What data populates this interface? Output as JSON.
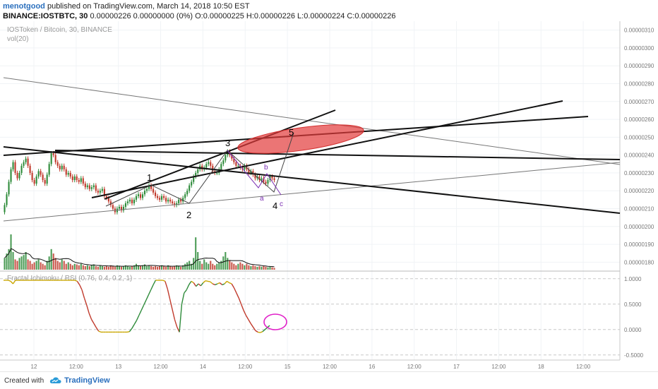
{
  "header": {
    "author": "menotgood",
    "published_text": "published on TradingView.com, March 14, 2018 10:50 EST",
    "symbol_line": "BINANCE:IOSTBTC, 30",
    "ohlc_line": "0.00000226 0.00000000 (0%) O:0.00000225 H:0.00000226 L:0.00000224 C:0.00000226"
  },
  "pane_labels": {
    "main": "IOSToken / Bitcoin, 30, BINANCE",
    "volume": "vol(20)",
    "indicator": "Fractal Ichimoku / RSI (0.76, 0.4, 0.2, 1)"
  },
  "footer": {
    "created_with": "Created with",
    "brand": "TradingView"
  },
  "colors": {
    "up": "#2e8b3a",
    "down": "#c0392b",
    "target_zone": "#e33b3b",
    "wave_labels": "#000000",
    "abc_labels": "#7b2fb3",
    "indicator_line": "#c9a600"
  },
  "chart_data": {
    "type": "candlestick",
    "price_axis": {
      "ticks": [
        "0.00000310",
        "0.00000300",
        "0.00000290",
        "0.00000280",
        "0.00000270",
        "0.00000260",
        "0.00000250",
        "0.00000240",
        "0.00000230",
        "0.00000220",
        "0.00000210",
        "0.00000200",
        "0.00000190",
        "0.00000180"
      ],
      "ylim": [
        1.75e-06,
        3.15e-06
      ]
    },
    "time_axis": {
      "ticks": [
        "12",
        "12:00",
        "13",
        "12:00",
        "14",
        "12:00",
        "15",
        "12:00",
        "16",
        "12:00",
        "17",
        "12:00",
        "18",
        "12:00"
      ]
    },
    "indicator_axis": {
      "ticks": [
        "1.0000",
        "0.5000",
        "0.0000",
        "-0.5000"
      ],
      "ylim": [
        -0.6,
        1.15
      ]
    },
    "closes": [
      2.12e-06,
      2.18e-06,
      2.25e-06,
      2.32e-06,
      2.36e-06,
      2.3e-06,
      2.27e-06,
      2.3e-06,
      2.34e-06,
      2.36e-06,
      2.38e-06,
      2.34e-06,
      2.3e-06,
      2.26e-06,
      2.24e-06,
      2.28e-06,
      2.31e-06,
      2.29e-06,
      2.26e-06,
      2.24e-06,
      2.29e-06,
      2.35e-06,
      2.41e-06,
      2.4e-06,
      2.36e-06,
      2.34e-06,
      2.32e-06,
      2.34e-06,
      2.32e-06,
      2.29e-06,
      2.3e-06,
      2.28e-06,
      2.26e-06,
      2.28e-06,
      2.26e-06,
      2.25e-06,
      2.27e-06,
      2.24e-06,
      2.22e-06,
      2.23e-06,
      2.21e-06,
      2.22e-06,
      2.23e-06,
      2.2e-06,
      2.19e-06,
      2.2e-06,
      2.21e-06,
      2.17e-06,
      2.16e-06,
      2.14e-06,
      2.12e-06,
      2.1e-06,
      2.08e-06,
      2.1e-06,
      2.11e-06,
      2.09e-06,
      2.11e-06,
      2.13e-06,
      2.14e-06,
      2.15e-06,
      2.13e-06,
      2.15e-06,
      2.17e-06,
      2.18e-06,
      2.16e-06,
      2.18e-06,
      2.2e-06,
      2.21e-06,
      2.23e-06,
      2.21e-06,
      2.19e-06,
      2.17e-06,
      2.16e-06,
      2.15e-06,
      2.17e-06,
      2.16e-06,
      2.14e-06,
      2.15e-06,
      2.14e-06,
      2.13e-06,
      2.12e-06,
      2.13e-06,
      2.15e-06,
      2.14e-06,
      2.16e-06,
      2.18e-06,
      2.2e-06,
      2.23e-06,
      2.25e-06,
      2.28e-06,
      2.3e-06,
      2.32e-06,
      2.34e-06,
      2.32e-06,
      2.33e-06,
      2.35e-06,
      2.36e-06,
      2.34e-06,
      2.31e-06,
      2.3e-06,
      2.3e-06,
      2.32e-06,
      2.35e-06,
      2.37e-06,
      2.4e-06,
      2.42e-06,
      2.4e-06,
      2.38e-06,
      2.36e-06,
      2.34e-06,
      2.34e-06,
      2.33e-06,
      2.32e-06,
      2.34e-06,
      2.32e-06,
      2.3e-06,
      2.31e-06,
      2.29e-06,
      2.27e-06,
      2.28e-06,
      2.26e-06,
      2.27e-06,
      2.25e-06,
      2.24e-06,
      2.26e-06,
      2.28e-06,
      2.27e-06,
      2.26e-06
    ],
    "volumes": [
      40,
      55,
      70,
      120,
      60,
      35,
      30,
      40,
      45,
      50,
      60,
      35,
      30,
      20,
      25,
      30,
      35,
      25,
      20,
      15,
      30,
      45,
      70,
      55,
      40,
      30,
      25,
      35,
      30,
      20,
      25,
      20,
      15,
      20,
      18,
      15,
      20,
      15,
      12,
      15,
      12,
      15,
      18,
      12,
      10,
      15,
      12,
      10,
      12,
      10,
      15,
      12,
      10,
      15,
      12,
      10,
      12,
      15,
      12,
      10,
      12,
      15,
      20,
      15,
      12,
      15,
      18,
      12,
      15,
      12,
      10,
      12,
      10,
      12,
      15,
      12,
      10,
      15,
      12,
      10,
      12,
      15,
      12,
      10,
      15,
      20,
      25,
      30,
      20,
      40,
      110,
      60,
      30,
      20,
      35,
      25,
      20,
      30,
      20,
      15,
      20,
      25,
      30,
      45,
      60,
      40,
      30,
      25,
      20,
      15,
      20,
      25,
      20,
      15,
      20,
      15,
      12,
      15,
      12,
      10,
      12,
      10,
      12,
      10,
      8,
      10,
      8,
      6
    ],
    "indicator": [
      0.97,
      0.97,
      0.97,
      0.95,
      0.9,
      0.97,
      0.97,
      0.97,
      0.97,
      0.97,
      0.97,
      0.97,
      0.97,
      0.97,
      0.97,
      0.97,
      0.97,
      0.97,
      0.97,
      0.97,
      0.97,
      0.97,
      0.97,
      0.97,
      0.97,
      0.97,
      0.97,
      0.97,
      0.97,
      0.97,
      0.97,
      0.95,
      0.88,
      0.78,
      0.62,
      0.48,
      0.32,
      0.2,
      0.12,
      0.04,
      -0.03,
      -0.05,
      -0.05,
      -0.05,
      -0.05,
      -0.05,
      -0.05,
      -0.05,
      -0.05,
      -0.05,
      -0.05,
      -0.05,
      -0.05,
      -0.04,
      0.02,
      0.1,
      0.18,
      0.28,
      0.38,
      0.48,
      0.58,
      0.68,
      0.78,
      0.88,
      0.97,
      0.97,
      0.97,
      0.97,
      0.95,
      0.8,
      0.6,
      0.4,
      0.2,
      0.05,
      -0.05,
      0.5,
      0.72,
      0.78,
      0.88,
      0.95,
      0.92,
      0.85,
      0.9,
      0.86,
      0.92,
      0.96,
      0.95,
      0.94,
      0.9,
      0.88,
      0.9,
      0.92,
      0.88,
      0.9,
      0.95,
      0.92,
      0.9,
      0.82,
      0.72,
      0.62,
      0.5,
      0.38,
      0.28,
      0.2,
      0.12,
      0.05,
      -0.02,
      -0.05,
      -0.06,
      -0.04,
      0.0,
      0.04,
      0.08
    ],
    "wave_labels": [
      "1",
      "2",
      "3",
      "4",
      "5"
    ],
    "abc_labels": [
      "a",
      "b",
      "c"
    ]
  }
}
